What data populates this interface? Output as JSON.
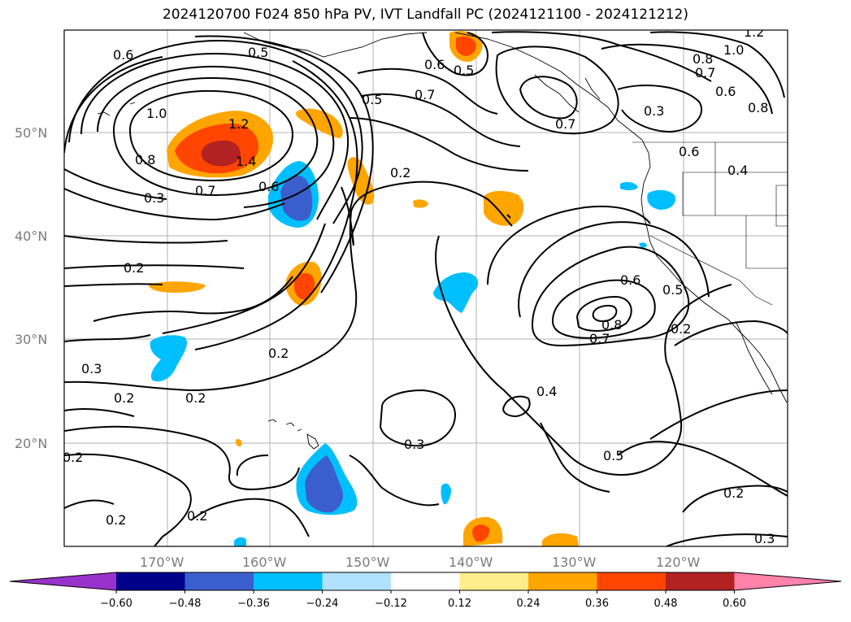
{
  "title": "2024120700 F024 850 hPa PV, IVT Landfall PC (2024121100 - 2024121212)",
  "lat_labels": [
    "50°N",
    "40°N",
    "30°N",
    "20°N"
  ],
  "lon_labels": [
    "170°W",
    "160°W",
    "150°W",
    "140°W",
    "130°W",
    "120°W"
  ],
  "contour_labels": {
    "c06a": "0.6",
    "c05a": "0.5",
    "c06b": "0.6",
    "c05b": "0.5",
    "c07a": "0.7",
    "c05c": "0.5",
    "c10a": "1.0",
    "c12a": "1.2",
    "c14a": "1.4",
    "c08a": "0.8",
    "c07b": "0.7",
    "c06c": "0.6",
    "c03a": "0.3",
    "c02a": "0.2",
    "c02b": "0.2",
    "c02c": "0.2",
    "c03b": "0.3",
    "c02d": "0.2",
    "c02e": "0.2",
    "c02f": "0.2",
    "c02g": "0.2",
    "c03c": "0.3",
    "c02h": "0.2",
    "c07c": "0.7",
    "c03d": "0.3",
    "c06d": "0.6",
    "c08b": "0.8",
    "c10b": "1.0",
    "c12b": "1.2",
    "c08c": "0.8",
    "c07d": "0.7",
    "c06e": "0.6",
    "c07e": "0.7",
    "c08d": "0.8",
    "c06f": "0.6",
    "c05d": "0.5",
    "c07f": "0.7",
    "c02i": "0.2",
    "c04a": "0.4",
    "c05e": "0.5",
    "c02j": "0.2",
    "c03e": "0.3",
    "c04b": "0.4"
  },
  "colorbar": {
    "colors": [
      "#9932cc",
      "#00008b",
      "#3a5fcd",
      "#00bfff",
      "#b0e2ff",
      "#ffffff",
      "#ffec8b",
      "#ffa500",
      "#ff4500",
      "#b22222",
      "#ff82ab"
    ],
    "ticks": [
      "−0.60",
      "−0.48",
      "−0.36",
      "−0.24",
      "−0.12",
      "0.12",
      "0.24",
      "0.36",
      "0.48",
      "0.60"
    ]
  }
}
